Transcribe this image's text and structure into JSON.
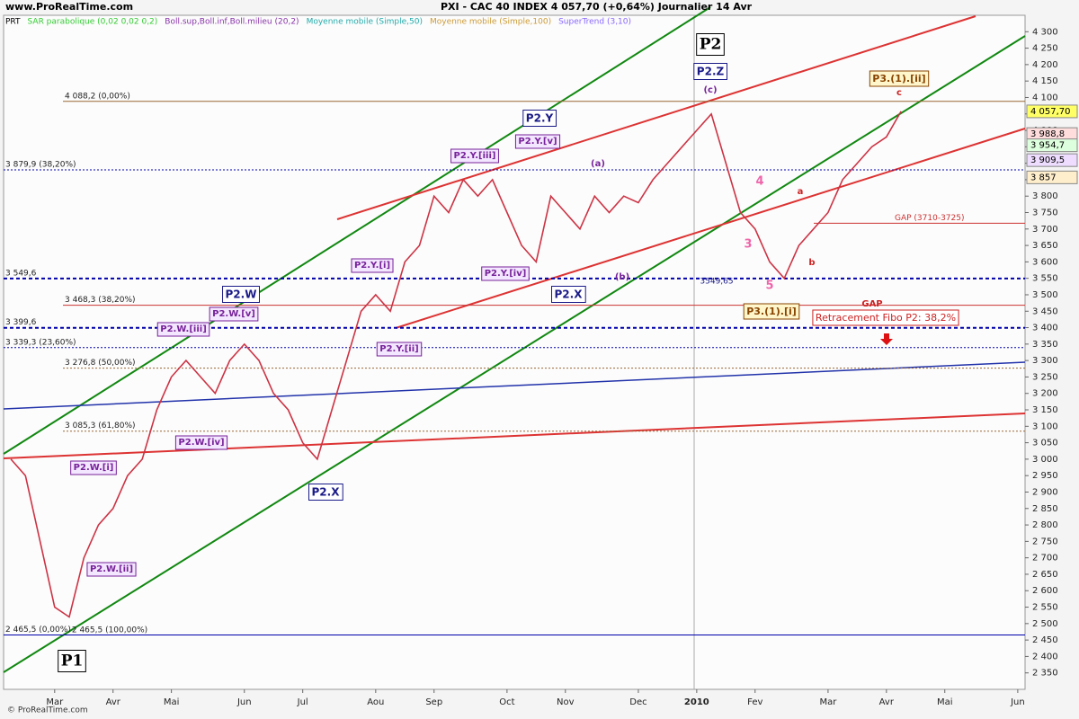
{
  "chart_data": {
    "type": "line",
    "site": "www.ProRealTime.com",
    "title": "PXI - CAC 40 INDEX    4 057,70 (+0,64%)    Journalier  14 Avr",
    "copyright": "© ProRealTime.com",
    "legend": [
      {
        "text": "PRT",
        "color": "#000000"
      },
      {
        "text": "SAR parabolique (0,02 0,02 0,2)",
        "color": "#33cc33"
      },
      {
        "text": "Boll.sup,Boll.inf,Boll.milieu (20,2)",
        "color": "#8833aa"
      },
      {
        "text": "Moyenne mobile (Simple,50)",
        "color": "#22aaaa"
      },
      {
        "text": "Moyenne mobile (Simple,100)",
        "color": "#cc9933"
      },
      {
        "text": "SuperTrend (3,10)",
        "color": "#8866ff"
      }
    ],
    "categories": [
      null,
      null,
      null,
      "Mar",
      null,
      null,
      null,
      "Avr",
      null,
      null,
      null,
      "Mai",
      null,
      null,
      null,
      null,
      "Jun",
      null,
      null,
      null,
      "Jul",
      null,
      null,
      null,
      null,
      "Aou",
      null,
      null,
      null,
      "Sep",
      null,
      null,
      null,
      null,
      "Oct",
      null,
      null,
      null,
      "Nov",
      null,
      null,
      null,
      null,
      "Dec",
      null,
      null,
      null,
      "2010",
      null,
      null,
      null,
      "Fev",
      null,
      null,
      null,
      null,
      "Mar",
      null,
      null,
      null,
      "Avr",
      null,
      null,
      null,
      "Mai",
      null,
      null,
      null,
      null,
      "Jun"
    ],
    "series": [
      {
        "name": "CAC 40",
        "color": "#cc3344",
        "values": [
          3000,
          2950,
          2750,
          2550,
          2520,
          2700,
          2800,
          2850,
          2950,
          3000,
          3150,
          3250,
          3300,
          3250,
          3200,
          3300,
          3350,
          3300,
          3200,
          3150,
          3050,
          3000,
          3150,
          3300,
          3450,
          3500,
          3450,
          3600,
          3650,
          3800,
          3750,
          3850,
          3800,
          3850,
          3750,
          3650,
          3600,
          3800,
          3750,
          3700,
          3800,
          3750,
          3800,
          3780,
          3850,
          3900,
          3950,
          4000,
          4050,
          3900,
          3750,
          3700,
          3600,
          3550,
          3650,
          3700,
          3750,
          3850,
          3900,
          3950,
          3980,
          4057.7,
          null,
          null,
          null,
          null,
          null,
          null,
          null,
          null
        ]
      }
    ],
    "ylim": [
      2300,
      4350
    ],
    "yticks": [
      {
        "value": 4300,
        "label": "4 300"
      },
      {
        "value": 4250,
        "label": "4 250"
      },
      {
        "value": 4200,
        "label": "4 200"
      },
      {
        "value": 4150,
        "label": "4 150"
      },
      {
        "value": 4100,
        "label": "4 100"
      },
      {
        "value": 4050,
        "label": "4 050"
      },
      {
        "value": 4000,
        "label": "4 000"
      },
      {
        "value": 3950,
        "label": "3 950"
      },
      {
        "value": 3900,
        "label": "3 900"
      },
      {
        "value": 3850,
        "label": "3 850"
      },
      {
        "value": 3800,
        "label": "3 800"
      },
      {
        "value": 3750,
        "label": "3 750"
      },
      {
        "value": 3700,
        "label": "3 700"
      },
      {
        "value": 3650,
        "label": "3 650"
      },
      {
        "value": 3600,
        "label": "3 600"
      },
      {
        "value": 3550,
        "label": "3 550"
      },
      {
        "value": 3500,
        "label": "3 500"
      },
      {
        "value": 3450,
        "label": "3 450"
      },
      {
        "value": 3400,
        "label": "3 400"
      },
      {
        "value": 3350,
        "label": "3 350"
      },
      {
        "value": 3300,
        "label": "3 300"
      },
      {
        "value": 3250,
        "label": "3 250"
      },
      {
        "value": 3200,
        "label": "3 200"
      },
      {
        "value": 3150,
        "label": "3 150"
      },
      {
        "value": 3100,
        "label": "3 100"
      },
      {
        "value": 3050,
        "label": "3 050"
      },
      {
        "value": 3000,
        "label": "3 000"
      },
      {
        "value": 2950,
        "label": "2 950"
      },
      {
        "value": 2900,
        "label": "2 900"
      },
      {
        "value": 2850,
        "label": "2 850"
      },
      {
        "value": 2800,
        "label": "2 800"
      },
      {
        "value": 2750,
        "label": "2 750"
      },
      {
        "value": 2700,
        "label": "2 700"
      },
      {
        "value": 2650,
        "label": "2 650"
      },
      {
        "value": 2600,
        "label": "2 600"
      },
      {
        "value": 2550,
        "label": "2 550"
      },
      {
        "value": 2500,
        "label": "2 500"
      },
      {
        "value": 2450,
        "label": "2 450"
      },
      {
        "value": 2400,
        "label": "2 400"
      },
      {
        "value": 2350,
        "label": "2 350"
      }
    ],
    "levels": [
      {
        "value": 4088.2,
        "label": "4 088,2 (0,00%)",
        "color": "#996633",
        "style": "solid"
      },
      {
        "value": 3879.9,
        "label": "3 879,9 (38,20%)",
        "color": "#0000aa",
        "style": "dot"
      },
      {
        "value": 3549.6,
        "label": "3 549,6",
        "color": "#0000aa",
        "style": "thick"
      },
      {
        "value": 3468.3,
        "label": "3 468,3 (38,20%)",
        "color": "#cc3333",
        "style": "solid"
      },
      {
        "value": 3399.6,
        "label": "3 399,6",
        "color": "#0000aa",
        "style": "thick"
      },
      {
        "value": 3339.3,
        "label": "3 339,3 (23,60%)",
        "color": "#0000aa",
        "style": "dot"
      },
      {
        "value": 3276.8,
        "label": "3 276,8 (50,00%)",
        "color": "#996633",
        "style": "dot"
      },
      {
        "value": 3085.3,
        "label": "3 085,3 (61,80%)",
        "color": "#996633",
        "style": "dot"
      },
      {
        "value": 2465.5,
        "label": "2 465,5 (0,00%)",
        "color": "#0000aa",
        "style": "solid"
      },
      {
        "value": 3717.5,
        "label": "GAP (3710-3725)",
        "color": "#cc3333",
        "style": "solid"
      }
    ],
    "price_tags": [
      {
        "value": 4057.7,
        "label": "4 057,70",
        "color": "#ffff66"
      },
      {
        "value": 3988.8,
        "label": "3 988,8",
        "color": "#ffdddd"
      },
      {
        "value": 3954.7,
        "label": "3 954,7",
        "color": "#ddffdd"
      },
      {
        "value": 3909.5,
        "label": "3 909,5",
        "color": "#eeddff"
      },
      {
        "value": 3857,
        "label": "3 857",
        "color": "#ffeecc"
      }
    ],
    "annotations": [
      "P1",
      "P2",
      "P2.Z",
      "(c)",
      "P2.W",
      "P2.X",
      "P2.Y",
      "P2.X",
      "P2.W.[i]",
      "P2.W.[ii]",
      "P2.W.[iii]",
      "P2.W.[iv]",
      "P2.W.[v]",
      "P2.Y.[i]",
      "P2.Y.[ii]",
      "P2.Y.[iii]",
      "P2.Y.[iv]",
      "P2.Y.[v]",
      "(a)",
      "(b)",
      "P3.(1).[i]",
      "P3.(1).[ii]",
      "c",
      "a",
      "b",
      "3",
      "4",
      "5",
      "GAP",
      "Retracement Fibo P2: 38,2%",
      "3549,65",
      "2 465,5 (100,00%)"
    ]
  }
}
